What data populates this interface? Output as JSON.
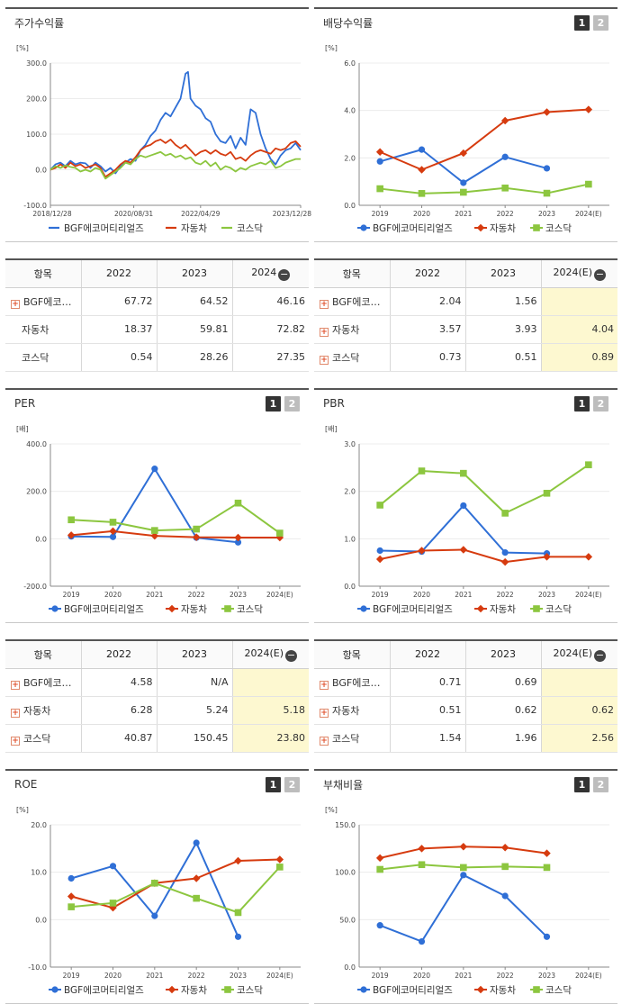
{
  "legend": {
    "s1": "BGF에코머티리얼즈",
    "s2": "자동차",
    "s3": "코스닥"
  },
  "colors": {
    "s1": "#2f6fd6",
    "s2": "#d63b0f",
    "s3": "#8cc63f",
    "axis": "#666",
    "grid": "#ececec",
    "highlight": "#fdf8d0"
  },
  "panels": [
    {
      "id": "stock-return",
      "title": "주가수익률",
      "pager": null,
      "chart_data": {
        "type": "line",
        "unit": "[%]",
        "ylim": [
          -100,
          300
        ],
        "yticks": [
          "300.0",
          "200.0",
          "100.0",
          "0.0",
          "-100.0"
        ],
        "xtick_labels": [
          "2018/12/28",
          "2020/08/31",
          "2022/04/29",
          "2023/12/28"
        ],
        "xtick_pos": [
          0,
          0.333,
          0.6,
          1
        ],
        "legend_shape": "line",
        "series": [
          {
            "name": "BGF에코머티리얼즈",
            "x": [
              0,
              0.02,
              0.04,
              0.06,
              0.08,
              0.1,
              0.12,
              0.14,
              0.16,
              0.18,
              0.2,
              0.22,
              0.24,
              0.26,
              0.28,
              0.3,
              0.32,
              0.34,
              0.36,
              0.38,
              0.4,
              0.42,
              0.44,
              0.46,
              0.48,
              0.5,
              0.52,
              0.54,
              0.55,
              0.56,
              0.58,
              0.6,
              0.62,
              0.64,
              0.66,
              0.68,
              0.7,
              0.72,
              0.74,
              0.76,
              0.78,
              0.8,
              0.82,
              0.84,
              0.86,
              0.88,
              0.9,
              0.92,
              0.94,
              0.96,
              0.98,
              1
            ],
            "values": [
              0,
              15,
              20,
              10,
              25,
              15,
              20,
              18,
              5,
              20,
              10,
              -5,
              5,
              -10,
              10,
              20,
              30,
              25,
              55,
              70,
              95,
              110,
              140,
              160,
              150,
              175,
              200,
              270,
              275,
              200,
              180,
              170,
              145,
              135,
              100,
              80,
              75,
              95,
              60,
              90,
              70,
              170,
              160,
              100,
              60,
              30,
              15,
              40,
              55,
              60,
              75,
              55
            ]
          },
          {
            "name": "자동차",
            "x": [
              0,
              0.02,
              0.04,
              0.06,
              0.08,
              0.1,
              0.12,
              0.14,
              0.16,
              0.18,
              0.2,
              0.22,
              0.24,
              0.26,
              0.28,
              0.3,
              0.32,
              0.34,
              0.36,
              0.38,
              0.4,
              0.42,
              0.44,
              0.46,
              0.48,
              0.5,
              0.52,
              0.54,
              0.56,
              0.58,
              0.6,
              0.62,
              0.64,
              0.66,
              0.68,
              0.7,
              0.72,
              0.74,
              0.76,
              0.78,
              0.8,
              0.82,
              0.84,
              0.86,
              0.88,
              0.9,
              0.92,
              0.94,
              0.96,
              0.98,
              1
            ],
            "values": [
              0,
              5,
              15,
              5,
              20,
              10,
              15,
              5,
              10,
              15,
              5,
              -20,
              -10,
              0,
              15,
              25,
              20,
              35,
              55,
              65,
              70,
              80,
              85,
              75,
              85,
              70,
              60,
              70,
              55,
              40,
              50,
              55,
              45,
              55,
              45,
              40,
              50,
              30,
              35,
              25,
              40,
              50,
              55,
              50,
              45,
              60,
              55,
              60,
              75,
              80,
              65
            ]
          },
          {
            "name": "코스닥",
            "x": [
              0,
              0.02,
              0.04,
              0.06,
              0.08,
              0.1,
              0.12,
              0.14,
              0.16,
              0.18,
              0.2,
              0.22,
              0.24,
              0.26,
              0.28,
              0.3,
              0.32,
              0.34,
              0.36,
              0.38,
              0.4,
              0.42,
              0.44,
              0.46,
              0.48,
              0.5,
              0.52,
              0.54,
              0.56,
              0.58,
              0.6,
              0.62,
              0.64,
              0.66,
              0.68,
              0.7,
              0.72,
              0.74,
              0.76,
              0.78,
              0.8,
              0.82,
              0.84,
              0.86,
              0.88,
              0.9,
              0.92,
              0.94,
              0.96,
              0.98,
              1
            ],
            "values": [
              0,
              10,
              5,
              12,
              8,
              5,
              -5,
              0,
              -5,
              5,
              0,
              -25,
              -15,
              -5,
              5,
              20,
              15,
              30,
              40,
              35,
              40,
              45,
              50,
              40,
              45,
              35,
              40,
              30,
              35,
              20,
              15,
              25,
              10,
              20,
              0,
              10,
              5,
              -5,
              5,
              0,
              10,
              15,
              20,
              15,
              25,
              5,
              10,
              20,
              25,
              30,
              30
            ]
          }
        ]
      },
      "table": {
        "headers": [
          "항목",
          "2022",
          "2023",
          "2024"
        ],
        "header_minus": true,
        "rows": [
          {
            "name": "BGF에코…",
            "plus": true,
            "cells": [
              "67.72",
              "64.52",
              "46.16"
            ]
          },
          {
            "name": "자동차",
            "plus": false,
            "cells": [
              "18.37",
              "59.81",
              "72.82"
            ]
          },
          {
            "name": "코스닥",
            "plus": false,
            "cells": [
              "0.54",
              "28.26",
              "27.35"
            ]
          }
        ],
        "highlight_last": false
      }
    },
    {
      "id": "dividend",
      "title": "배당수익률",
      "pager": [
        "1",
        "2"
      ],
      "chart_data": {
        "type": "line",
        "unit": "[%]",
        "ylim": [
          0,
          6
        ],
        "yticks": [
          "6.0",
          "4.0",
          "2.0",
          "0.0"
        ],
        "categories": [
          "2019",
          "2020",
          "2021",
          "2022",
          "2023",
          "2024(E)"
        ],
        "legend_shape": "marker",
        "series": [
          {
            "name": "BGF에코머티리얼즈",
            "values": [
              1.85,
              2.35,
              0.95,
              2.04,
              1.56,
              null
            ]
          },
          {
            "name": "자동차",
            "values": [
              2.25,
              1.5,
              2.2,
              3.57,
              3.93,
              4.04
            ]
          },
          {
            "name": "코스닥",
            "values": [
              0.7,
              0.5,
              0.55,
              0.73,
              0.51,
              0.89
            ]
          }
        ]
      },
      "table": {
        "headers": [
          "항목",
          "2022",
          "2023",
          "2024(E)"
        ],
        "header_minus": true,
        "rows": [
          {
            "name": "BGF에코…",
            "plus": true,
            "cells": [
              "2.04",
              "1.56",
              ""
            ]
          },
          {
            "name": "자동차",
            "plus": true,
            "cells": [
              "3.57",
              "3.93",
              "4.04"
            ]
          },
          {
            "name": "코스닥",
            "plus": true,
            "cells": [
              "0.73",
              "0.51",
              "0.89"
            ]
          }
        ],
        "highlight_last": true
      }
    },
    {
      "id": "per",
      "title": "PER",
      "pager": [
        "1",
        "2"
      ],
      "chart_data": {
        "type": "line",
        "unit": "[배]",
        "ylim": [
          -200,
          400
        ],
        "yticks": [
          "400.0",
          "200.0",
          "0.0",
          "-200.0"
        ],
        "categories": [
          "2019",
          "2020",
          "2021",
          "2022",
          "2023",
          "2024(E)"
        ],
        "legend_shape": "marker",
        "series": [
          {
            "name": "BGF에코머티리얼즈",
            "values": [
              10,
              8,
              295,
              4.58,
              -15,
              null
            ]
          },
          {
            "name": "자동차",
            "values": [
              15,
              32,
              12,
              6.28,
              5.24,
              5.18
            ]
          },
          {
            "name": "코스닥",
            "values": [
              80,
              70,
              35,
              40.87,
              150.45,
              23.8
            ]
          }
        ]
      },
      "table": {
        "headers": [
          "항목",
          "2022",
          "2023",
          "2024(E)"
        ],
        "header_minus": true,
        "rows": [
          {
            "name": "BGF에코…",
            "plus": true,
            "cells": [
              "4.58",
              "N/A",
              ""
            ]
          },
          {
            "name": "자동차",
            "plus": true,
            "cells": [
              "6.28",
              "5.24",
              "5.18"
            ]
          },
          {
            "name": "코스닥",
            "plus": true,
            "cells": [
              "40.87",
              "150.45",
              "23.80"
            ]
          }
        ],
        "highlight_last": true
      }
    },
    {
      "id": "pbr",
      "title": "PBR",
      "pager": [
        "1",
        "2"
      ],
      "chart_data": {
        "type": "line",
        "unit": "[배]",
        "ylim": [
          0,
          3
        ],
        "yticks": [
          "3.0",
          "2.0",
          "1.0",
          "0.0"
        ],
        "categories": [
          "2019",
          "2020",
          "2021",
          "2022",
          "2023",
          "2024(E)"
        ],
        "legend_shape": "marker",
        "series": [
          {
            "name": "BGF에코머티리얼즈",
            "values": [
              0.75,
              0.73,
              1.7,
              0.71,
              0.69,
              null
            ]
          },
          {
            "name": "자동차",
            "values": [
              0.57,
              0.75,
              0.77,
              0.51,
              0.62,
              0.62
            ]
          },
          {
            "name": "코스닥",
            "values": [
              1.71,
              2.43,
              2.38,
              1.54,
              1.96,
              2.56
            ]
          }
        ]
      },
      "table": {
        "headers": [
          "항목",
          "2022",
          "2023",
          "2024(E)"
        ],
        "header_minus": true,
        "rows": [
          {
            "name": "BGF에코…",
            "plus": true,
            "cells": [
              "0.71",
              "0.69",
              ""
            ]
          },
          {
            "name": "자동차",
            "plus": true,
            "cells": [
              "0.51",
              "0.62",
              "0.62"
            ]
          },
          {
            "name": "코스닥",
            "plus": true,
            "cells": [
              "1.54",
              "1.96",
              "2.56"
            ]
          }
        ],
        "highlight_last": true
      }
    },
    {
      "id": "roe",
      "title": "ROE",
      "pager": [
        "1",
        "2"
      ],
      "chart_data": {
        "type": "line",
        "unit": "[%]",
        "ylim": [
          -10,
          20
        ],
        "yticks": [
          "20.0",
          "10.0",
          "0.0",
          "-10.0"
        ],
        "categories": [
          "2019",
          "2020",
          "2021",
          "2022",
          "2023",
          "2024(E)"
        ],
        "legend_shape": "marker",
        "series": [
          {
            "name": "BGF에코머티리얼즈",
            "values": [
              8.7,
              11.3,
              0.8,
              16.2,
              -3.6,
              null
            ]
          },
          {
            "name": "자동차",
            "values": [
              4.9,
              2.5,
              7.7,
              8.7,
              12.4,
              12.7
            ]
          },
          {
            "name": "코스닥",
            "values": [
              2.7,
              3.5,
              7.7,
              4.5,
              1.5,
              11.1
            ]
          }
        ]
      },
      "table": null
    },
    {
      "id": "debt-ratio",
      "title": "부채비율",
      "pager": [
        "1",
        "2"
      ],
      "chart_data": {
        "type": "line",
        "unit": "[%]",
        "ylim": [
          0,
          150
        ],
        "yticks": [
          "150.0",
          "100.0",
          "50.0",
          "0.0"
        ],
        "categories": [
          "2019",
          "2020",
          "2021",
          "2022",
          "2023",
          "2024(E)"
        ],
        "legend_shape": "marker",
        "series": [
          {
            "name": "BGF에코머티리얼즈",
            "values": [
              44,
              27,
              97,
              75,
              32,
              null
            ]
          },
          {
            "name": "자동차",
            "values": [
              115,
              125,
              127,
              126,
              120,
              null
            ]
          },
          {
            "name": "코스닥",
            "values": [
              103,
              108,
              105,
              106,
              105,
              null
            ]
          }
        ]
      },
      "table": null
    }
  ]
}
